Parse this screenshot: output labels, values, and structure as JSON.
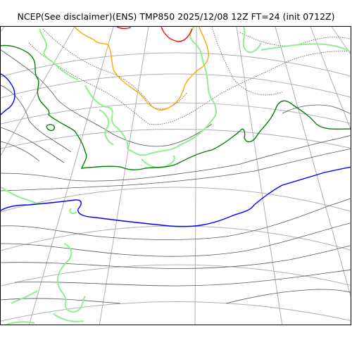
{
  "title": "NCEP(See disclaimer)(ENS) TMP850 2025/12/08 12Z FT=24 (init 0712Z)",
  "map": {
    "variable": "TMP850",
    "model": "NCEP ENS",
    "valid": "2025/12/08 12Z",
    "forecast_hour": "FT=24",
    "init": "0712Z",
    "projection": "polar stereographic",
    "colors": {
      "graticule": "#b0b0b0",
      "isotherm": "#555555",
      "coastline": "#90ee90",
      "isotherm_0c": "#008000",
      "isotherm_minus6c": "#0000ff",
      "isotherm_warm_orange": "#ffa500",
      "isotherm_warm_red": "#ff0000"
    }
  }
}
